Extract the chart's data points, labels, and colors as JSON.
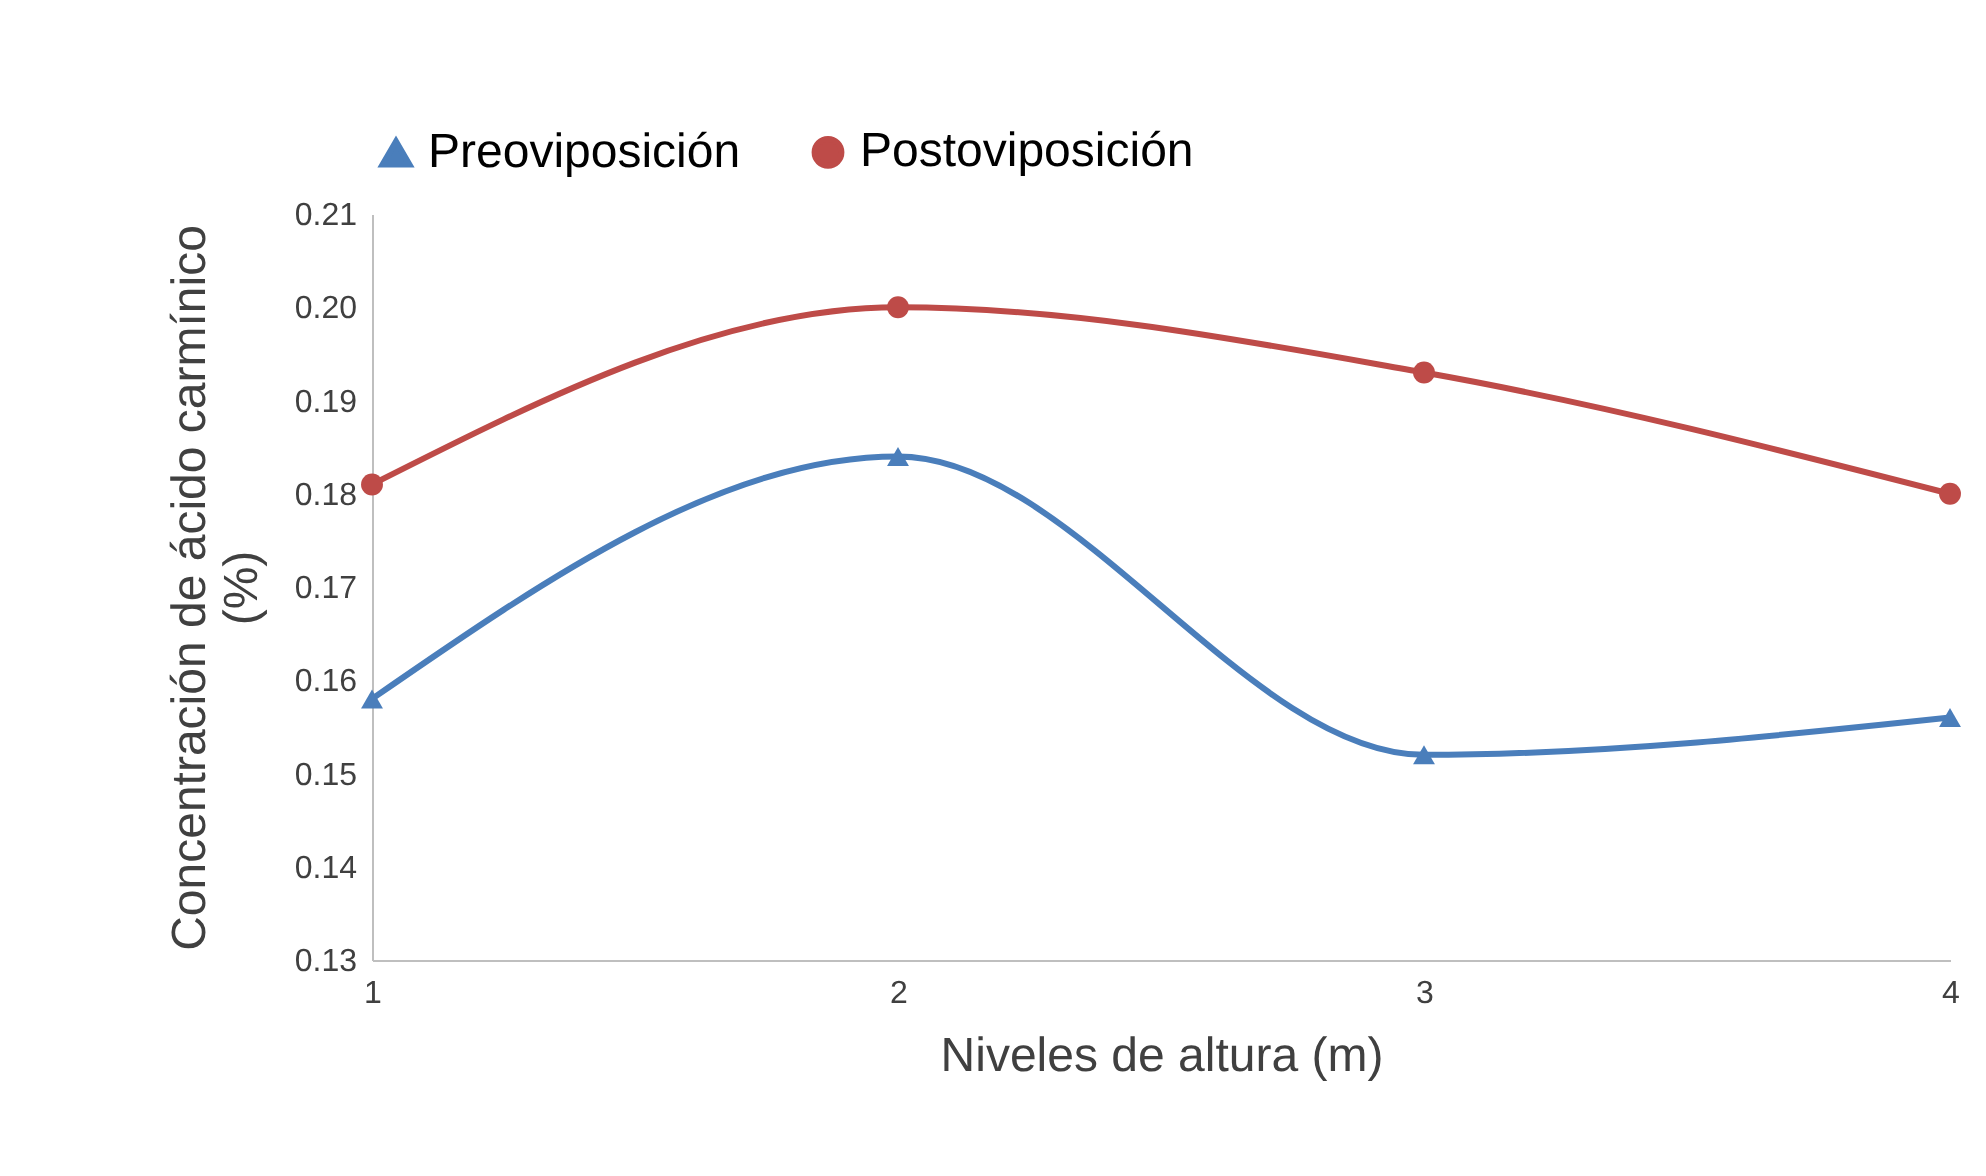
{
  "chart_data": {
    "type": "line",
    "xlabel": "Niveles de altura (m)",
    "ylabel": "Concentración de ácido carmínico (%)",
    "x": [
      1,
      2,
      3,
      4
    ],
    "xlim": [
      1,
      4
    ],
    "xticks": [
      1,
      2,
      3,
      4
    ],
    "ylim": [
      0.13,
      0.21
    ],
    "yticks": [
      0.13,
      0.14,
      0.15,
      0.16,
      0.17,
      0.18,
      0.19,
      {
        "value": 0.2,
        "label": "0.20"
      },
      0.21
    ],
    "grid": false,
    "legend": "top",
    "line_style": "solid",
    "series": [
      {
        "name": "Preoviposición",
        "color": "#4a7ebb",
        "marker": "triangle",
        "values": [
          0.158,
          0.184,
          0.152,
          0.156
        ]
      },
      {
        "name": "Postoviposición",
        "color": "#be4b48",
        "marker": "circle",
        "values": [
          0.181,
          0.2,
          0.193,
          0.18
        ]
      }
    ]
  }
}
